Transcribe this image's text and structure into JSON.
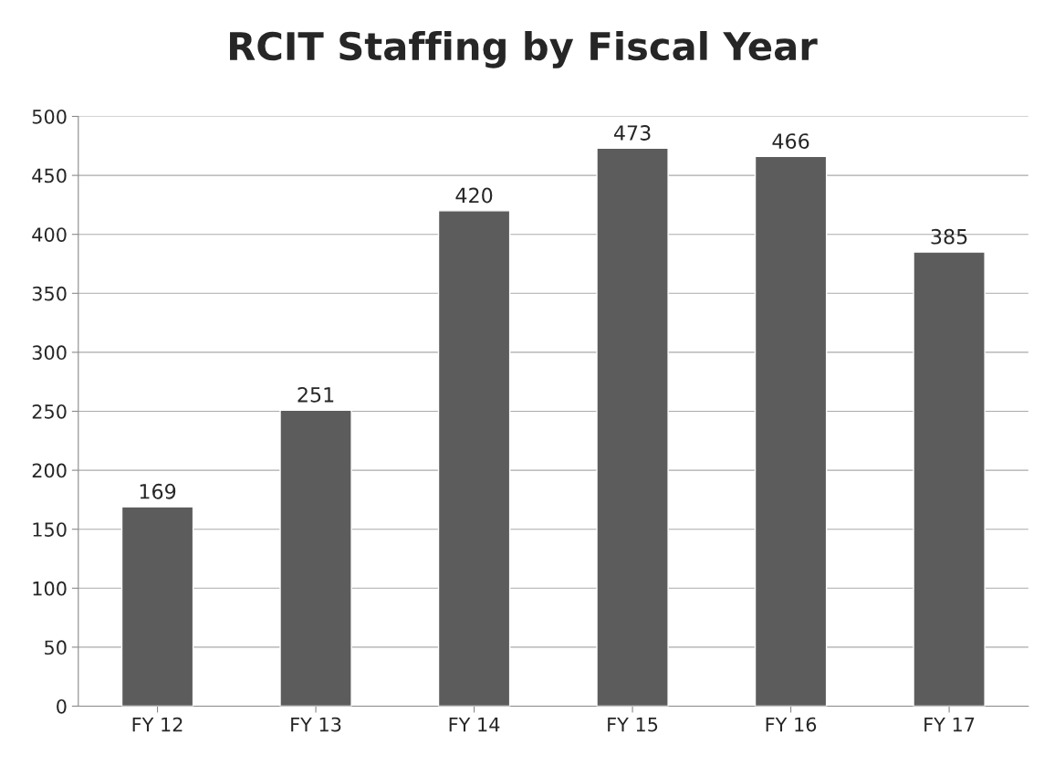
{
  "chart_data": {
    "type": "bar",
    "title": "RCIT Staffing by Fiscal Year",
    "categories": [
      "FY 12",
      "FY 13",
      "FY 14",
      "FY 15",
      "FY 16",
      "FY 17"
    ],
    "values": [
      169,
      251,
      420,
      473,
      466,
      385
    ],
    "color": "#5c5c5c",
    "ylim": [
      0,
      500
    ],
    "yticks": [
      0,
      50,
      100,
      150,
      200,
      250,
      300,
      350,
      400,
      450,
      500
    ],
    "grid": "y",
    "data_labels": true
  }
}
